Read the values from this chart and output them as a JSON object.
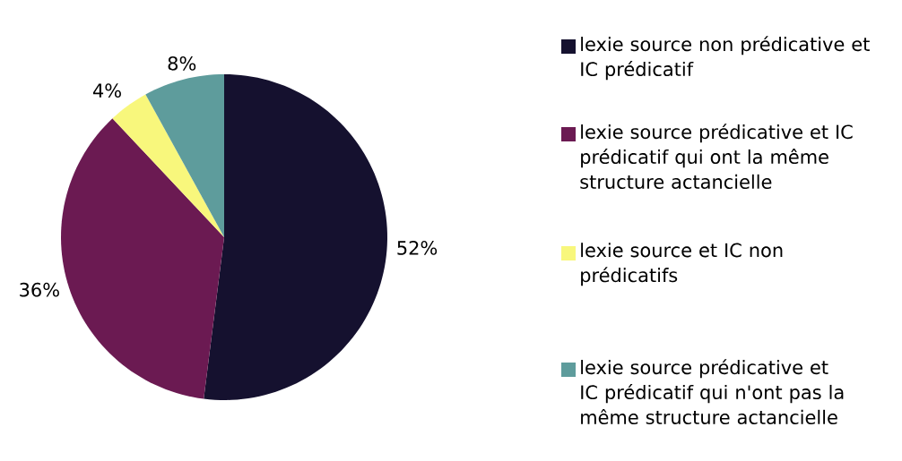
{
  "chart_data": {
    "type": "pie",
    "categories": [
      "lexie source non prédicative et IC prédicatif",
      "lexie source prédicative et IC prédicatif qui ont la même structure actancielle",
      "lexie source et IC non prédicatifs",
      "lexie source prédicative et IC prédicatif qui n'ont pas la même structure actancielle"
    ],
    "values": [
      52,
      36,
      4,
      8
    ],
    "colors": [
      "#15112f",
      "#6b1a52",
      "#f8f77c",
      "#5e9c9c"
    ],
    "value_labels": [
      "52%",
      "36%",
      "4%",
      "8%"
    ],
    "legend": "right"
  }
}
